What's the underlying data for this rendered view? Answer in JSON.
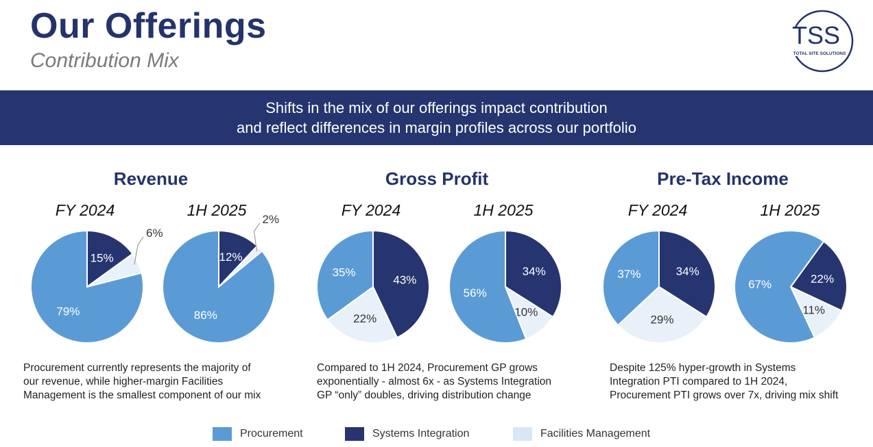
{
  "header": {
    "title": "Our Offerings",
    "subtitle": "Contribution Mix",
    "logo_text": "TSS",
    "logo_subtext": "TOTAL SITE SOLUTIONS"
  },
  "banner": {
    "line1": "Shifts in the mix of our offerings impact contribution",
    "line2": "and reflect differences in margin profiles across our portfolio"
  },
  "colors": {
    "procurement": "#5b9bd5",
    "systems_integration": "#263570",
    "facilities_management": "#e8f1fa",
    "brand_navy": "#24336b"
  },
  "sections": [
    {
      "title": "Revenue",
      "description_lines": [
        "Procurement currently represents the majority of",
        "our revenue, while higher-margin Facilities",
        "Management is the smallest component of our mix"
      ]
    },
    {
      "title": "Gross Profit",
      "description_lines": [
        "Compared to 1H 2024, Procurement GP grows",
        "exponentially - almost 6x - as Systems Integration",
        "GP “only” doubles, driving distribution change"
      ]
    },
    {
      "title": "Pre-Tax Income",
      "description_lines": [
        "Despite 125% hyper-growth in Systems",
        "Integration PTI compared to 1H 2024,",
        "Procurement PTI grows over 7x, driving mix shift"
      ]
    }
  ],
  "legend": [
    {
      "label": "Procurement",
      "color": "#5b9bd5"
    },
    {
      "label": "Systems Integration",
      "color": "#263570"
    },
    {
      "label": "Facilities Management",
      "color": "#d6e7f5"
    }
  ],
  "chart_data": [
    {
      "type": "pie",
      "title": "Revenue",
      "subtitle": "FY 2024",
      "categories": [
        "Systems Integration",
        "Facilities Management",
        "Procurement"
      ],
      "values": [
        15,
        6,
        79
      ],
      "labels": [
        "15%",
        "6%",
        "79%"
      ]
    },
    {
      "type": "pie",
      "title": "Revenue",
      "subtitle": "1H 2025",
      "categories": [
        "Systems Integration",
        "Facilities Management",
        "Procurement"
      ],
      "values": [
        12,
        2,
        86
      ],
      "labels": [
        "12%",
        "2%",
        "86%"
      ]
    },
    {
      "type": "pie",
      "title": "Gross Profit",
      "subtitle": "FY 2024",
      "categories": [
        "Systems Integration",
        "Facilities Management",
        "Procurement"
      ],
      "values": [
        43,
        22,
        35
      ],
      "labels": [
        "43%",
        "22%",
        "35%"
      ]
    },
    {
      "type": "pie",
      "title": "Gross Profit",
      "subtitle": "1H 2025",
      "categories": [
        "Systems Integration",
        "Facilities Management",
        "Procurement"
      ],
      "values": [
        34,
        10,
        56
      ],
      "labels": [
        "34%",
        "10%",
        "56%"
      ]
    },
    {
      "type": "pie",
      "title": "Pre-Tax Income",
      "subtitle": "FY 2024",
      "categories": [
        "Systems Integration",
        "Facilities Management",
        "Procurement"
      ],
      "values": [
        34,
        29,
        37
      ],
      "labels": [
        "34%",
        "29%",
        "37%"
      ]
    },
    {
      "type": "pie",
      "title": "Pre-Tax Income",
      "subtitle": "1H 2025",
      "categories": [
        "Systems Integration",
        "Facilities Management",
        "Procurement"
      ],
      "values": [
        22,
        11,
        67
      ],
      "labels": [
        "22%",
        "11%",
        "67%"
      ]
    }
  ]
}
